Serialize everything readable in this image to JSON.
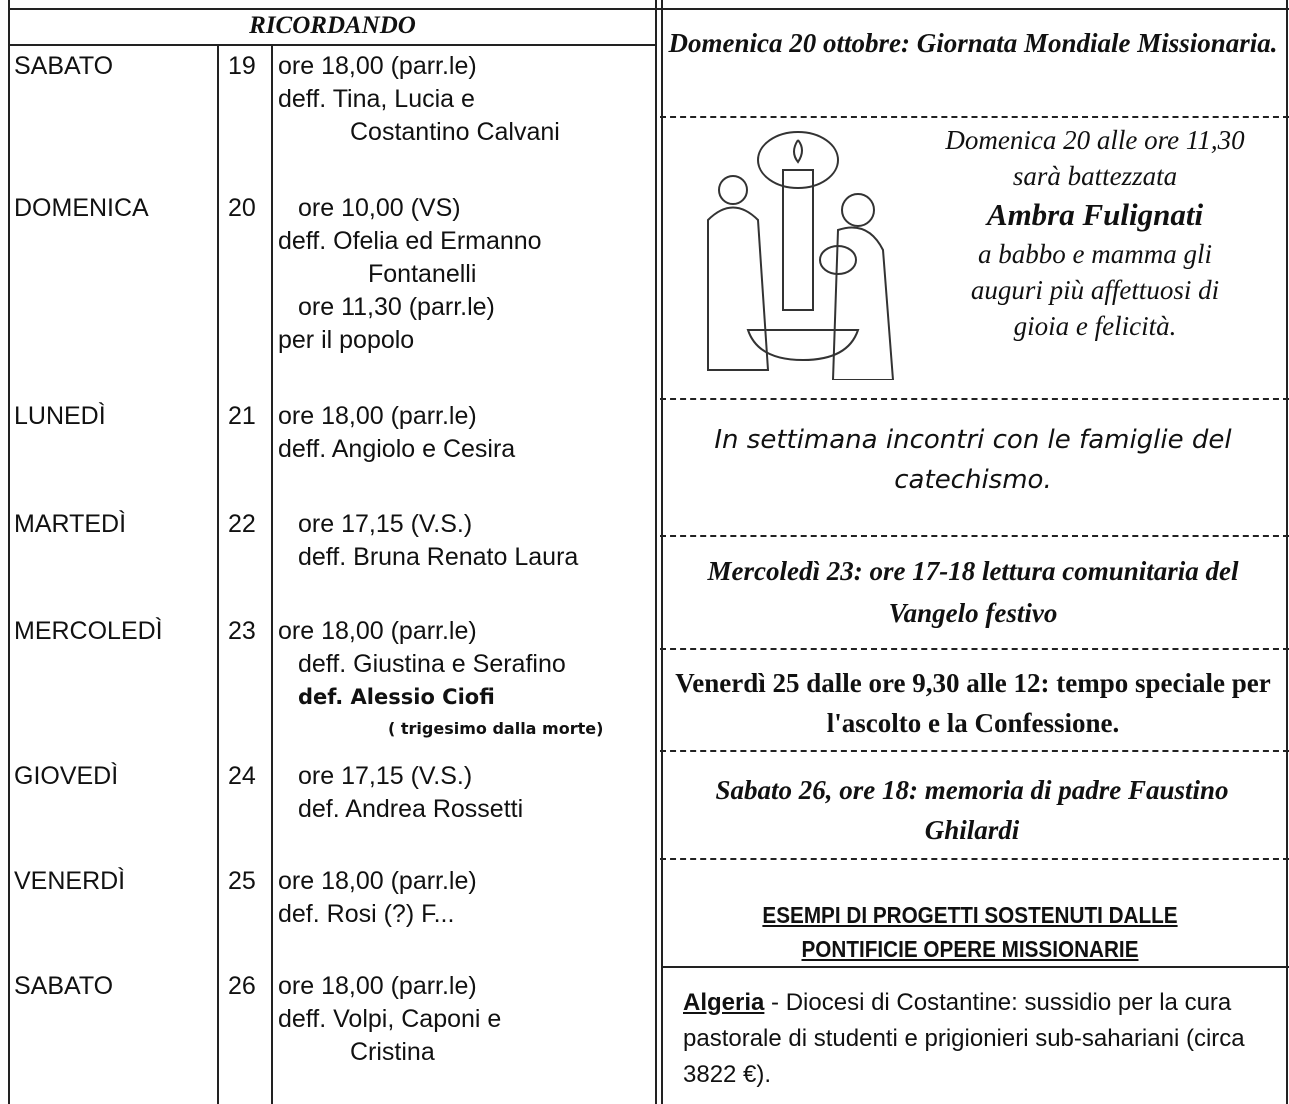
{
  "left": {
    "header": "RICORDANDO",
    "rows": [
      {
        "day": "SABATO",
        "date": "19",
        "lines": [
          "ore 18,00 (parr.le)",
          "deff. Tina, Lucia e",
          "Costantino Calvani"
        ]
      },
      {
        "day": "DOMENICA",
        "date": "20",
        "lines": [
          "ore 10,00 (VS)",
          "deff. Ofelia ed Ermanno",
          "Fontanelli",
          "ore 11,30 (parr.le)",
          "per il popolo"
        ]
      },
      {
        "day": "LUNEDÌ",
        "date": "21",
        "lines": [
          "ore 18,00 (parr.le)",
          "deff. Angiolo e Cesira"
        ]
      },
      {
        "day": "MARTEDÌ",
        "date": "22",
        "lines": [
          "ore 17,15 (V.S.)",
          "deff. Bruna Renato Laura"
        ]
      },
      {
        "day": "MERCOLEDÌ",
        "date": "23",
        "lines": [
          "ore 18,00 (parr.le)",
          "deff. Giustina e Serafino",
          "def. Alessio Ciofi",
          "( trigesimo dalla morte)"
        ]
      },
      {
        "day": "GIOVEDÌ",
        "date": "24",
        "lines": [
          "ore 17,15 (V.S.)",
          "def. Andrea Rossetti"
        ]
      },
      {
        "day": "VENERDÌ",
        "date": "25",
        "lines": [
          "ore 18,00 (parr.le)",
          "def. Rosi (?) F..."
        ]
      },
      {
        "day": "SABATO",
        "date": "26",
        "lines": [
          "ore 18,00 (parr.le)",
          "deff. Volpi, Caponi e",
          "Cristina"
        ]
      }
    ]
  },
  "right": {
    "missionary_day": "Domenica 20 ottobre: Giornata Mondiale Missionaria.",
    "baptism": {
      "lines": [
        "Domenica 20 alle ore 11,30",
        "sarà battezzata",
        "Ambra Fulignati",
        "a babbo e mamma gli",
        "auguri più affettuosi di",
        "gioia e felicità."
      ]
    },
    "catechism": "In settimana incontri con le famiglie del catechismo.",
    "gospel_reading": "Mercoledì 23: ore 17-18 lettura comunitaria del Vangelo festivo",
    "confession": "Venerdì 25 dalle ore 9,30 alle 12: tempo speciale per l'ascolto e la Confessione.",
    "memorial": "Sabato 26, ore 18: memoria di padre Faustino Ghilardi",
    "projects_title": "ESEMPI DI PROGETTI SOSTENUTI DALLE PONTIFICIE OPERE MISSIONARIE",
    "project": {
      "country": "Algeria",
      "text": " - Diocesi di Costantine: sussidio per la cura pastorale di studenti e prigionieri sub-sahariani (circa 3822 €)."
    }
  }
}
